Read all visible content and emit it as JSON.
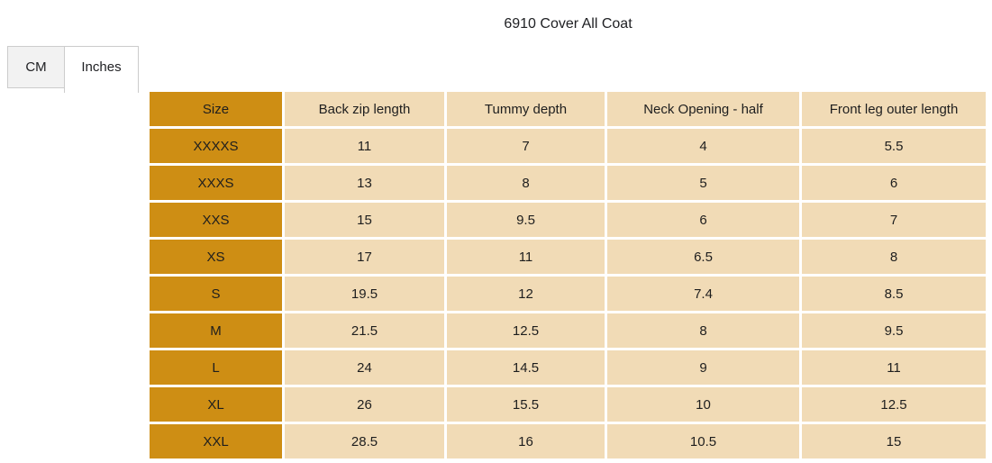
{
  "page": {
    "title": "6910 Cover All Coat"
  },
  "tabs": [
    {
      "label": "CM",
      "active": false
    },
    {
      "label": "Inches",
      "active": true
    }
  ],
  "table": {
    "columns": [
      "Size",
      "Back zip length",
      "Tummy depth",
      "Neck Opening - half",
      "Front leg outer length"
    ],
    "rows": [
      {
        "size": "XXXXS",
        "values": [
          "11",
          "7",
          "4",
          "5.5"
        ]
      },
      {
        "size": "XXXS",
        "values": [
          "13",
          "8",
          "5",
          "6"
        ]
      },
      {
        "size": "XXS",
        "values": [
          "15",
          "9.5",
          "6",
          "7"
        ]
      },
      {
        "size": "XS",
        "values": [
          "17",
          "11",
          "6.5",
          "8"
        ]
      },
      {
        "size": "S",
        "values": [
          "19.5",
          "12",
          "7.4",
          "8.5"
        ]
      },
      {
        "size": "M",
        "values": [
          "21.5",
          "12.5",
          "8",
          "9.5"
        ]
      },
      {
        "size": "L",
        "values": [
          "24",
          "14.5",
          "9",
          "11"
        ]
      },
      {
        "size": "XL",
        "values": [
          "26",
          "15.5",
          "10",
          "12.5"
        ]
      },
      {
        "size": "XXL",
        "values": [
          "28.5",
          "16",
          "10.5",
          "15"
        ]
      }
    ]
  },
  "colors": {
    "gold": "#CE8E14",
    "tan": "#F1DBB6"
  }
}
